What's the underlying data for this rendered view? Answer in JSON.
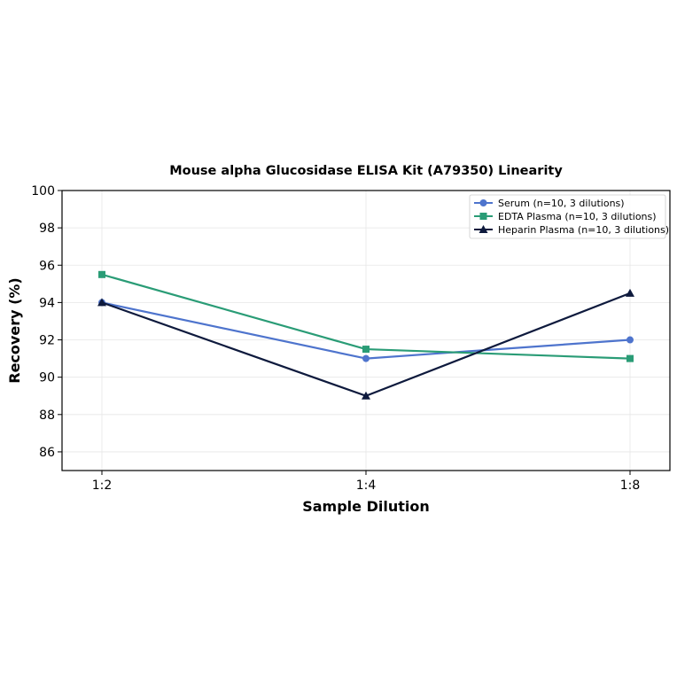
{
  "chart_data": {
    "type": "line",
    "title": "Mouse alpha Glucosidase ELISA Kit (A79350) Linearity",
    "xlabel": "Sample Dilution",
    "ylabel": "Recovery (%)",
    "categories": [
      "1:2",
      "1:4",
      "1:8"
    ],
    "ylim": [
      85,
      100
    ],
    "yticks": [
      86,
      88,
      90,
      92,
      94,
      96,
      98,
      100
    ],
    "grid": true,
    "legend_position": "top-right",
    "series": [
      {
        "name": "Serum (n=10, 3 dilutions)",
        "values": [
          94,
          91,
          92
        ],
        "color": "#4e74cd",
        "marker": "circle"
      },
      {
        "name": "EDTA Plasma (n=10, 3 dilutions)",
        "values": [
          95.5,
          91.5,
          91
        ],
        "color": "#2a9c76",
        "marker": "square"
      },
      {
        "name": "Heparin Plasma (n=10, 3 dilutions)",
        "values": [
          94,
          89,
          94.5
        ],
        "color": "#0e1a3d",
        "marker": "triangle"
      }
    ]
  }
}
